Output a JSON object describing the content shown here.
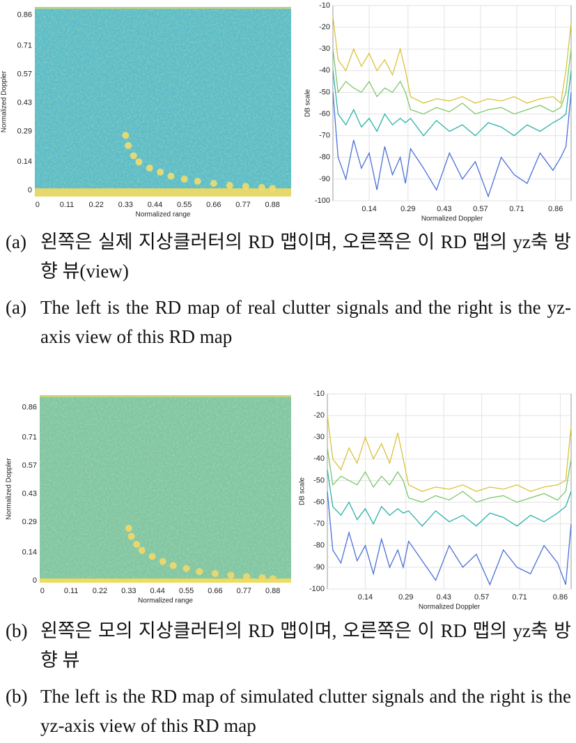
{
  "chart_data": [
    {
      "type": "heatmap",
      "xlabel": "Normalized range",
      "ylabel": "Normalized Doppler",
      "background_color": "#5cbdca",
      "band_color": "#e6d86a",
      "color": "#f0dc70",
      "xlim": [
        -0.01,
        0.95
      ],
      "ylim": [
        -0.03,
        0.9
      ],
      "xticks": [
        0,
        0.11,
        0.22,
        0.33,
        0.44,
        0.55,
        0.66,
        0.77,
        0.88
      ],
      "yticks": [
        0,
        0.14,
        0.29,
        0.43,
        0.57,
        0.71,
        0.86
      ],
      "x": [
        0.33,
        0.34,
        0.36,
        0.38,
        0.42,
        0.46,
        0.5,
        0.55,
        0.6,
        0.66,
        0.72,
        0.78,
        0.84,
        0.88
      ],
      "values": [
        0.27,
        0.22,
        0.17,
        0.14,
        0.11,
        0.09,
        0.07,
        0.055,
        0.045,
        0.035,
        0.025,
        0.02,
        0.015,
        0.01
      ]
    },
    {
      "type": "line",
      "xlabel": "Normalized Doppler",
      "ylabel": "DB scale",
      "grid": true,
      "xlim": [
        0,
        0.92
      ],
      "ylim": [
        -100,
        -10
      ],
      "xticks": [
        0.14,
        0.29,
        0.43,
        0.57,
        0.71,
        0.86
      ],
      "yticks": [
        -10,
        -20,
        -30,
        -40,
        -50,
        -60,
        -70,
        -80,
        -90,
        -100
      ],
      "x": [
        0,
        0.02,
        0.05,
        0.08,
        0.11,
        0.14,
        0.17,
        0.2,
        0.23,
        0.26,
        0.28,
        0.3,
        0.35,
        0.4,
        0.45,
        0.5,
        0.55,
        0.6,
        0.65,
        0.7,
        0.75,
        0.8,
        0.85,
        0.88,
        0.9,
        0.92
      ],
      "series": [
        {
          "color": "#d9c23a",
          "values": [
            -15,
            -35,
            -40,
            -30,
            -38,
            -32,
            -40,
            -35,
            -42,
            -30,
            -40,
            -52,
            -55,
            -53,
            -54,
            -52,
            -55,
            -53,
            -54,
            -52,
            -55,
            -53,
            -52,
            -55,
            -40,
            -18
          ]
        },
        {
          "color": "#7cc76a",
          "values": [
            -30,
            -50,
            -45,
            -48,
            -50,
            -45,
            -52,
            -48,
            -50,
            -45,
            -50,
            -58,
            -60,
            -57,
            -59,
            -55,
            -60,
            -58,
            -57,
            -60,
            -58,
            -56,
            -59,
            -57,
            -50,
            -30
          ]
        },
        {
          "color": "#2bb0a8",
          "values": [
            -40,
            -60,
            -65,
            -58,
            -66,
            -62,
            -68,
            -60,
            -65,
            -62,
            -64,
            -62,
            -70,
            -63,
            -68,
            -65,
            -70,
            -64,
            -66,
            -70,
            -65,
            -68,
            -64,
            -62,
            -60,
            -40
          ]
        },
        {
          "color": "#4a6fd8",
          "values": [
            -50,
            -80,
            -90,
            -72,
            -85,
            -78,
            -95,
            -75,
            -88,
            -80,
            -92,
            -76,
            -85,
            -95,
            -78,
            -90,
            -82,
            -98,
            -80,
            -88,
            -92,
            -78,
            -86,
            -80,
            -75,
            -50
          ]
        }
      ]
    },
    {
      "type": "heatmap",
      "xlabel": "Normalized range",
      "ylabel": "Normalized Doppler",
      "background_color": "#80c6a6",
      "band_color": "#efdc5c",
      "color": "#f2d86a",
      "xlim": [
        -0.01,
        0.95
      ],
      "ylim": [
        -0.01,
        0.92
      ],
      "xticks": [
        0,
        0.11,
        0.22,
        0.33,
        0.44,
        0.55,
        0.66,
        0.77,
        0.88
      ],
      "yticks": [
        0,
        0.14,
        0.29,
        0.43,
        0.57,
        0.71,
        0.86
      ],
      "x": [
        0.33,
        0.34,
        0.36,
        0.38,
        0.42,
        0.46,
        0.5,
        0.55,
        0.6,
        0.66,
        0.72,
        0.78,
        0.84,
        0.88
      ],
      "values": [
        0.26,
        0.22,
        0.18,
        0.15,
        0.12,
        0.095,
        0.075,
        0.06,
        0.045,
        0.035,
        0.027,
        0.02,
        0.015,
        0.01
      ]
    },
    {
      "type": "line",
      "xlabel": "Normalized Doppler",
      "ylabel": "DB scale",
      "grid": true,
      "xlim": [
        0,
        0.9
      ],
      "ylim": [
        -100,
        -10
      ],
      "xticks": [
        0.14,
        0.29,
        0.43,
        0.57,
        0.71,
        0.86
      ],
      "yticks": [
        -10,
        -20,
        -30,
        -40,
        -50,
        -60,
        -70,
        -80,
        -90,
        -100
      ],
      "x": [
        0,
        0.02,
        0.05,
        0.08,
        0.11,
        0.14,
        0.17,
        0.2,
        0.23,
        0.26,
        0.28,
        0.3,
        0.35,
        0.4,
        0.45,
        0.5,
        0.55,
        0.6,
        0.65,
        0.7,
        0.75,
        0.8,
        0.85,
        0.88,
        0.9
      ],
      "series": [
        {
          "color": "#d9c23a",
          "values": [
            -20,
            -40,
            -45,
            -35,
            -42,
            -30,
            -40,
            -33,
            -42,
            -28,
            -40,
            -52,
            -55,
            -53,
            -54,
            -52,
            -55,
            -53,
            -54,
            -52,
            -55,
            -53,
            -52,
            -50,
            -25
          ]
        },
        {
          "color": "#7cc76a",
          "values": [
            -35,
            -52,
            -48,
            -50,
            -52,
            -46,
            -53,
            -48,
            -52,
            -46,
            -50,
            -58,
            -60,
            -57,
            -59,
            -55,
            -60,
            -58,
            -57,
            -60,
            -58,
            -56,
            -59,
            -55,
            -40
          ]
        },
        {
          "color": "#2bb0a8",
          "values": [
            -45,
            -62,
            -66,
            -60,
            -68,
            -63,
            -70,
            -62,
            -66,
            -63,
            -65,
            -64,
            -71,
            -64,
            -69,
            -66,
            -71,
            -65,
            -67,
            -71,
            -66,
            -69,
            -65,
            -62,
            -55
          ]
        },
        {
          "color": "#4a6fd8",
          "values": [
            -55,
            -82,
            -88,
            -74,
            -87,
            -80,
            -93,
            -77,
            -90,
            -82,
            -90,
            -78,
            -87,
            -96,
            -80,
            -90,
            -84,
            -98,
            -82,
            -90,
            -93,
            -80,
            -88,
            -98,
            -70
          ]
        }
      ]
    }
  ],
  "captions": [
    {
      "label": "(a)",
      "korean": "왼쪽은 실제 지상클러터의 RD 맵이며, 오른쪽은 이 RD 맵의 yz축 방향 뷰(view)",
      "english_label": "(a)",
      "english": "The left is the RD map of real clutter signals and the right is the yz-axis view of this RD map"
    },
    {
      "label": "(b)",
      "korean": "왼쪽은 모의 지상클러터의 RD 맵이며, 오른쪽은 이 RD 맵의 yz축 방향 뷰",
      "english_label": "(b)",
      "english": "The left is the RD map of simulated clutter signals and the right is the yz-axis view of this RD map"
    }
  ]
}
